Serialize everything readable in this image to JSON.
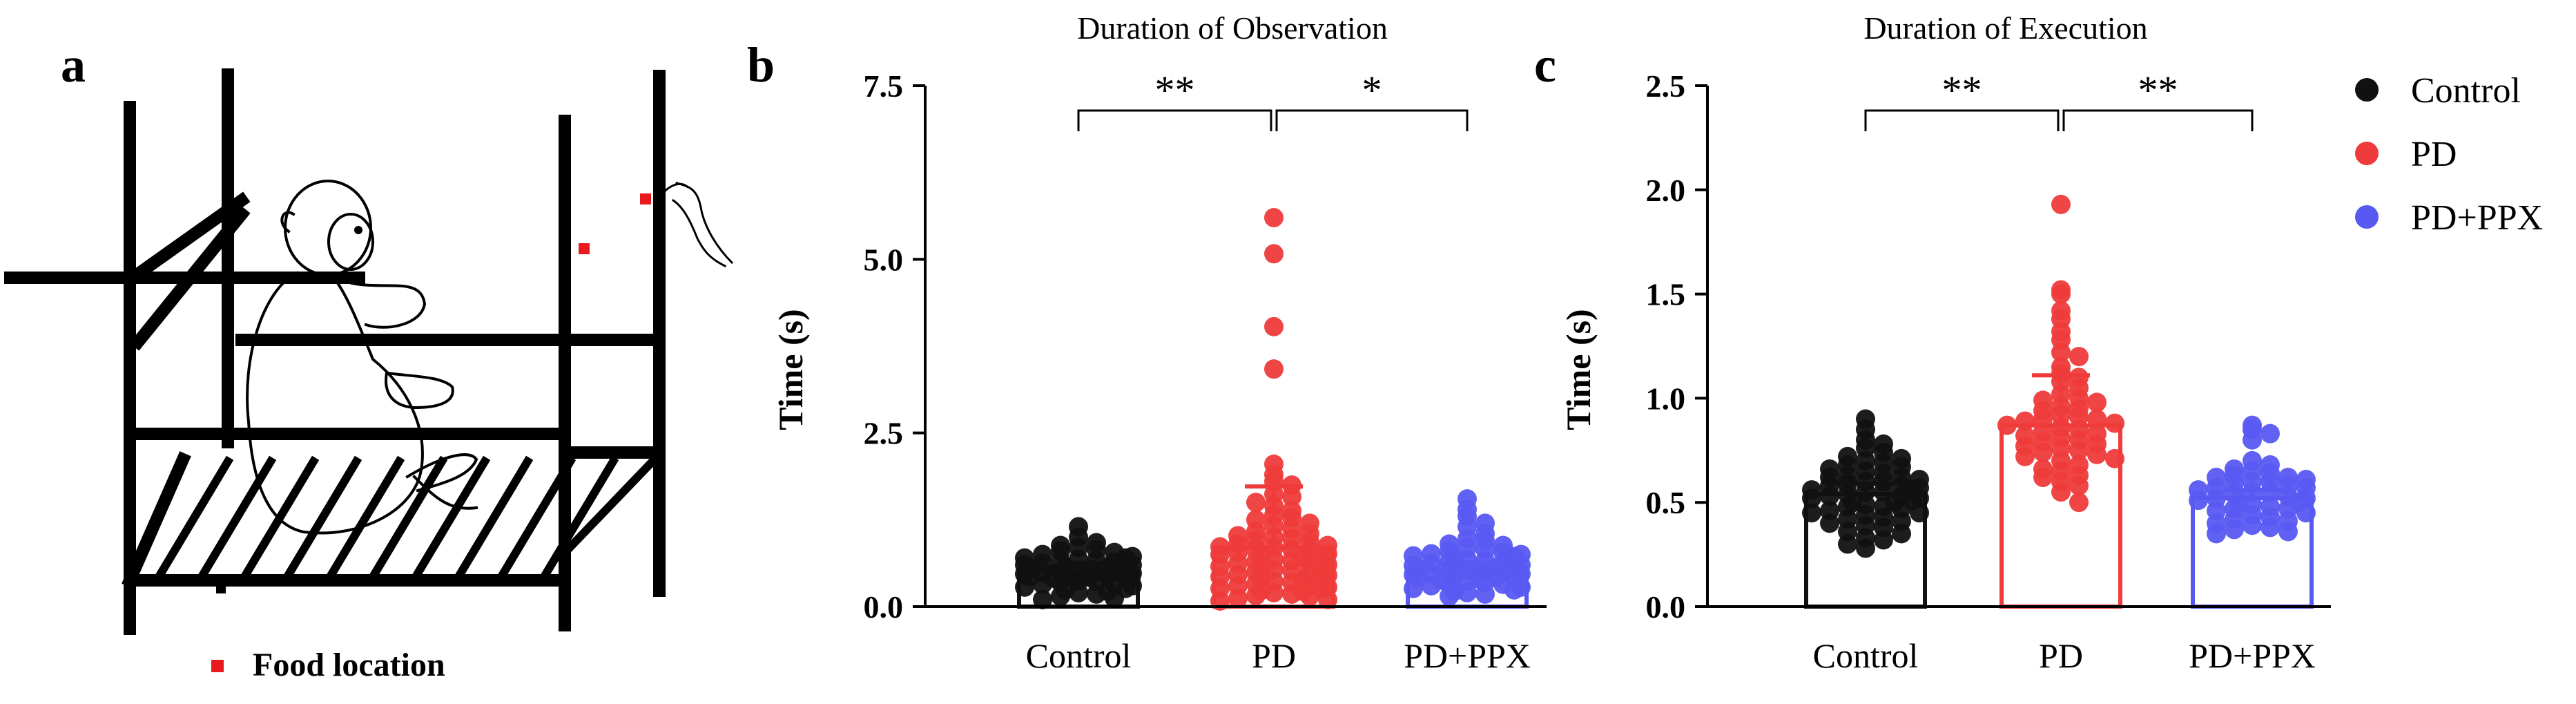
{
  "panels": {
    "a": "a",
    "b": "b",
    "c": "c"
  },
  "illustration": {
    "food_label": "Food location",
    "marker_color": "#e8191f"
  },
  "legend": [
    {
      "name": "Control",
      "color": "#111111"
    },
    {
      "name": "PD",
      "color": "#ef3b3b"
    },
    {
      "name": "PD+PPX",
      "color": "#5858f2"
    }
  ],
  "chart_data": [
    {
      "type": "bar",
      "title": "Duration of Observation",
      "ylabel": "Time (s)",
      "categories": [
        "Control",
        "PD",
        "PD+PPX"
      ],
      "ylim": [
        0,
        7.5
      ],
      "yticks": [
        0.0,
        2.5,
        5.0,
        7.5
      ],
      "yticklabels": [
        "0.0",
        "2.5",
        "5.0",
        "7.5"
      ],
      "grid": false,
      "series": [
        {
          "name": "Control",
          "mean": 0.5,
          "error": 0.08,
          "points": [
            1.15,
            1.0,
            0.92,
            0.88,
            0.85,
            0.82,
            0.8,
            0.78,
            0.75,
            0.72,
            0.7,
            0.7,
            0.68,
            0.66,
            0.65,
            0.64,
            0.62,
            0.6,
            0.6,
            0.58,
            0.57,
            0.56,
            0.55,
            0.54,
            0.53,
            0.52,
            0.5,
            0.5,
            0.49,
            0.48,
            0.47,
            0.46,
            0.45,
            0.44,
            0.43,
            0.42,
            0.41,
            0.4,
            0.38,
            0.37,
            0.36,
            0.35,
            0.33,
            0.32,
            0.3,
            0.28,
            0.26,
            0.24,
            0.22,
            0.2,
            0.18,
            0.15,
            0.12,
            0.1
          ]
        },
        {
          "name": "PD",
          "mean": 0.85,
          "error": 0.88,
          "points": [
            5.6,
            5.08,
            4.03,
            3.42,
            2.05,
            1.9,
            1.8,
            1.75,
            1.62,
            1.58,
            1.5,
            1.45,
            1.38,
            1.32,
            1.28,
            1.25,
            1.2,
            1.17,
            1.12,
            1.08,
            1.05,
            1.02,
            1.0,
            0.98,
            0.95,
            0.93,
            0.9,
            0.88,
            0.86,
            0.85,
            0.83,
            0.82,
            0.8,
            0.78,
            0.76,
            0.75,
            0.74,
            0.72,
            0.7,
            0.68,
            0.66,
            0.65,
            0.63,
            0.62,
            0.6,
            0.58,
            0.56,
            0.55,
            0.53,
            0.52,
            0.5,
            0.48,
            0.46,
            0.45,
            0.43,
            0.42,
            0.4,
            0.38,
            0.36,
            0.35,
            0.33,
            0.32,
            0.3,
            0.28,
            0.26,
            0.25,
            0.23,
            0.22,
            0.2,
            0.18,
            0.16,
            0.15,
            0.12,
            0.1,
            0.08
          ]
        },
        {
          "name": "PD+PPX",
          "mean": 0.55,
          "error": 0.07,
          "points": [
            1.55,
            1.4,
            1.3,
            1.2,
            1.15,
            1.05,
            0.98,
            0.95,
            0.9,
            0.88,
            0.85,
            0.82,
            0.8,
            0.78,
            0.76,
            0.75,
            0.73,
            0.72,
            0.7,
            0.68,
            0.66,
            0.65,
            0.63,
            0.62,
            0.6,
            0.59,
            0.58,
            0.57,
            0.56,
            0.55,
            0.54,
            0.53,
            0.52,
            0.5,
            0.49,
            0.48,
            0.47,
            0.46,
            0.45,
            0.44,
            0.43,
            0.42,
            0.4,
            0.38,
            0.37,
            0.35,
            0.33,
            0.32,
            0.3,
            0.28,
            0.26,
            0.24,
            0.22,
            0.2,
            0.18,
            0.15
          ]
        }
      ],
      "significance": [
        {
          "from": "Control",
          "to": "PD",
          "label": "**"
        },
        {
          "from": "PD",
          "to": "PD+PPX",
          "label": "*"
        }
      ]
    },
    {
      "type": "bar",
      "title": "Duration of Execution",
      "ylabel": "Time (s)",
      "categories": [
        "Control",
        "PD",
        "PD+PPX"
      ],
      "ylim": [
        0,
        2.5
      ],
      "yticks": [
        0.0,
        0.5,
        1.0,
        1.5,
        2.0,
        2.5
      ],
      "yticklabels": [
        "0.0",
        "0.5",
        "1.0",
        "1.5",
        "2.0",
        "2.5"
      ],
      "grid": false,
      "series": [
        {
          "name": "Control",
          "mean": 0.54,
          "error": 0.05,
          "points": [
            0.9,
            0.85,
            0.8,
            0.78,
            0.76,
            0.74,
            0.72,
            0.71,
            0.7,
            0.69,
            0.68,
            0.67,
            0.66,
            0.65,
            0.64,
            0.63,
            0.62,
            0.62,
            0.61,
            0.6,
            0.6,
            0.59,
            0.58,
            0.58,
            0.57,
            0.56,
            0.56,
            0.55,
            0.55,
            0.54,
            0.53,
            0.53,
            0.52,
            0.52,
            0.51,
            0.5,
            0.5,
            0.49,
            0.48,
            0.48,
            0.47,
            0.46,
            0.45,
            0.45,
            0.44,
            0.43,
            0.42,
            0.41,
            0.4,
            0.39,
            0.38,
            0.36,
            0.35,
            0.33,
            0.32,
            0.3,
            0.28
          ]
        },
        {
          "name": "PD",
          "mean": 0.87,
          "error": 0.24,
          "points": [
            1.93,
            1.52,
            1.5,
            1.42,
            1.38,
            1.32,
            1.28,
            1.22,
            1.2,
            1.15,
            1.12,
            1.1,
            1.08,
            1.05,
            1.02,
            1.0,
            0.99,
            0.98,
            0.96,
            0.95,
            0.94,
            0.92,
            0.91,
            0.9,
            0.9,
            0.89,
            0.88,
            0.87,
            0.86,
            0.85,
            0.84,
            0.83,
            0.82,
            0.81,
            0.8,
            0.79,
            0.78,
            0.77,
            0.76,
            0.75,
            0.74,
            0.73,
            0.72,
            0.71,
            0.7,
            0.68,
            0.66,
            0.65,
            0.63,
            0.62,
            0.6,
            0.58,
            0.55,
            0.5
          ]
        },
        {
          "name": "PD+PPX",
          "mean": 0.52,
          "error": 0.04,
          "points": [
            0.87,
            0.85,
            0.83,
            0.8,
            0.7,
            0.68,
            0.66,
            0.65,
            0.64,
            0.63,
            0.62,
            0.62,
            0.61,
            0.6,
            0.6,
            0.59,
            0.58,
            0.57,
            0.57,
            0.56,
            0.55,
            0.55,
            0.54,
            0.53,
            0.52,
            0.52,
            0.51,
            0.5,
            0.5,
            0.49,
            0.48,
            0.47,
            0.47,
            0.46,
            0.45,
            0.44,
            0.43,
            0.42,
            0.41,
            0.4,
            0.39,
            0.38,
            0.37,
            0.36,
            0.35
          ]
        }
      ],
      "significance": [
        {
          "from": "Control",
          "to": "PD",
          "label": "**"
        },
        {
          "from": "PD",
          "to": "PD+PPX",
          "label": "**"
        }
      ]
    }
  ]
}
